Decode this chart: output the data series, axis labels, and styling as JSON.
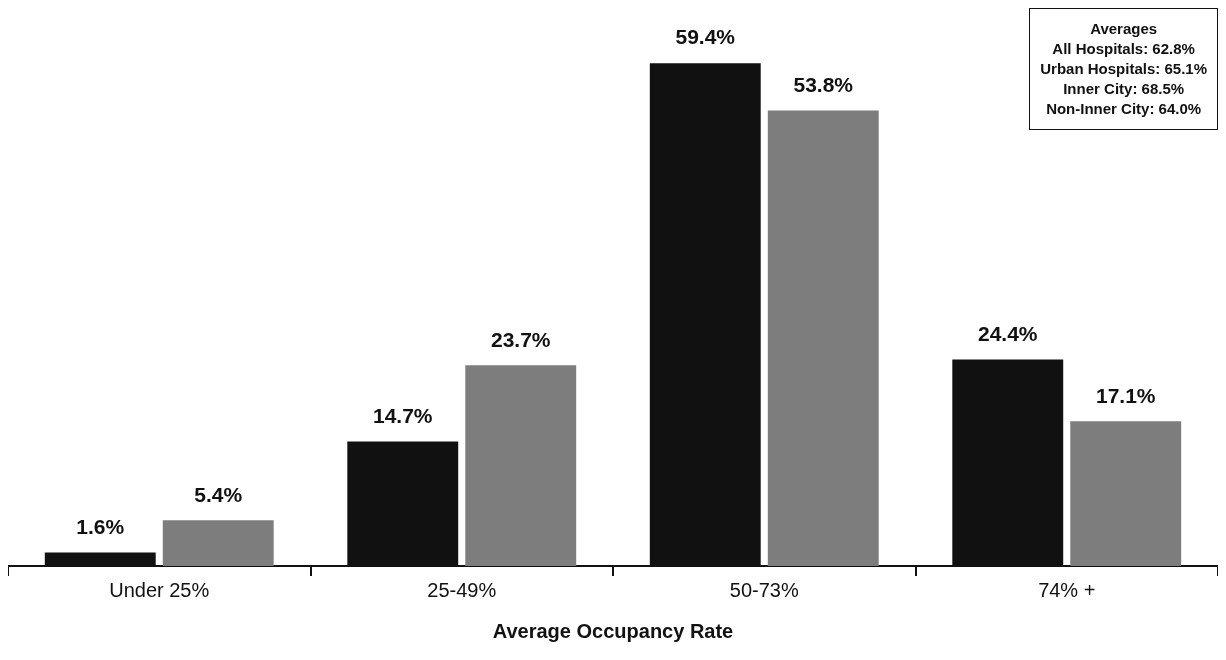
{
  "chart_data": {
    "type": "bar",
    "xlabel": "Average Occupancy Rate",
    "categories": [
      "Under 25%",
      "25-49%",
      "50-73%",
      "74% +"
    ],
    "series": [
      {
        "color": "#111111",
        "values": [
          1.6,
          14.7,
          59.4,
          24.4
        ],
        "value_labels": [
          "1.6%",
          "14.7%",
          "59.4%",
          "24.4%"
        ]
      },
      {
        "color": "#7d7d7d",
        "values": [
          5.4,
          23.7,
          53.8,
          17.1
        ],
        "value_labels": [
          "5.4%",
          "23.7%",
          "53.8%",
          "17.1%"
        ]
      }
    ],
    "grid": false,
    "legend": false,
    "annotations": [
      "Averages",
      "All Hospitals: 62.8%",
      "Urban Hospitals: 65.1%",
      "Inner City: 68.5%",
      "Non-Inner City: 64.0%"
    ]
  }
}
